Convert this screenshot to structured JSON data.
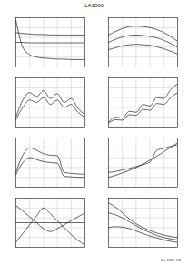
{
  "header": {
    "title": "LA1800"
  },
  "footer": {
    "text": "No.4681-4/8"
  },
  "chart_data": [
    {
      "type": "line",
      "x": [
        0,
        1,
        2,
        3,
        4,
        5,
        6,
        7,
        8,
        9,
        10
      ],
      "xlim": [
        0,
        10
      ],
      "ylim": [
        0,
        10
      ],
      "xticks": [
        0,
        2,
        4,
        6,
        8,
        10
      ],
      "yticks": [
        0,
        2,
        4,
        6,
        8,
        10
      ],
      "grid": true,
      "tick_labels": false,
      "series": [
        {
          "color": "#222222",
          "values": [
            9.5,
            4.0,
            2.5,
            2.0,
            1.8,
            1.7,
            1.6,
            1.6,
            1.5,
            1.5,
            1.5
          ]
        },
        {
          "color": "#222222",
          "values": [
            7.0,
            6.8,
            6.7,
            6.6,
            6.6,
            6.5,
            6.5,
            6.5,
            6.5,
            6.5,
            6.5
          ]
        },
        {
          "color": "#222222",
          "values": [
            5.0,
            5.0,
            4.9,
            4.9,
            4.9,
            4.9,
            4.9,
            4.9,
            4.9,
            4.9,
            4.9
          ]
        }
      ]
    },
    {
      "type": "line",
      "x": [
        0,
        1,
        2,
        3,
        4,
        5,
        6,
        7,
        8,
        9,
        10
      ],
      "xlim": [
        0,
        10
      ],
      "ylim": [
        0,
        10
      ],
      "xticks": [
        0,
        2,
        4,
        6,
        8,
        10
      ],
      "yticks": [
        0,
        2,
        4,
        6,
        8,
        10
      ],
      "grid": true,
      "tick_labels": false,
      "series": [
        {
          "color": "#222222",
          "values": [
            6.5,
            7.2,
            7.8,
            8.2,
            8.3,
            8.2,
            8.0,
            7.6,
            7.0,
            6.2,
            5.2
          ]
        },
        {
          "color": "#222222",
          "values": [
            5.0,
            5.6,
            6.1,
            6.4,
            6.5,
            6.4,
            6.2,
            5.9,
            5.4,
            4.8,
            4.0
          ]
        },
        {
          "color": "#222222",
          "values": [
            3.5,
            3.9,
            4.3,
            4.5,
            4.6,
            4.5,
            4.4,
            4.1,
            3.7,
            3.2,
            2.6
          ]
        }
      ]
    },
    {
      "type": "line",
      "x": [
        0,
        1,
        2,
        3,
        4,
        5,
        6,
        7,
        8,
        9,
        10
      ],
      "xlim": [
        0,
        10
      ],
      "ylim": [
        0,
        10
      ],
      "xticks": [
        0,
        2,
        4,
        6,
        8,
        10
      ],
      "yticks": [
        0,
        2,
        4,
        6,
        8,
        10
      ],
      "grid": true,
      "tick_labels": false,
      "series": [
        {
          "color": "#222222",
          "values": [
            2.0,
            5.5,
            7.0,
            6.2,
            7.4,
            5.8,
            6.8,
            5.0,
            5.8,
            3.8,
            2.5
          ]
        },
        {
          "color": "#222222",
          "values": [
            1.5,
            4.0,
            5.5,
            5.0,
            6.0,
            4.6,
            5.5,
            4.0,
            4.6,
            3.0,
            2.0
          ]
        }
      ]
    },
    {
      "type": "line",
      "x": [
        0,
        1,
        2,
        3,
        4,
        5,
        6,
        7,
        8,
        9,
        10
      ],
      "xlim": [
        0,
        10
      ],
      "ylim": [
        0,
        10
      ],
      "xticks": [
        0,
        2,
        4,
        6,
        8,
        10
      ],
      "yticks": [
        0,
        2,
        4,
        6,
        8,
        10
      ],
      "grid": true,
      "tick_labels": false,
      "series": [
        {
          "color": "#222222",
          "values": [
            1.0,
            2.0,
            1.8,
            3.2,
            3.0,
            4.6,
            4.3,
            6.0,
            5.8,
            7.6,
            8.8
          ]
        },
        {
          "color": "#222222",
          "values": [
            0.8,
            1.5,
            1.4,
            2.5,
            2.4,
            3.6,
            3.4,
            4.8,
            4.6,
            6.0,
            7.0
          ]
        }
      ]
    },
    {
      "type": "line",
      "x": [
        0,
        1,
        2,
        3,
        4,
        5,
        6,
        7,
        8,
        9,
        10
      ],
      "xlim": [
        0,
        10
      ],
      "ylim": [
        0,
        10
      ],
      "xticks": [
        0,
        2,
        4,
        6,
        8,
        10
      ],
      "yticks": [
        0,
        2,
        4,
        6,
        8,
        10
      ],
      "grid": true,
      "tick_labels": false,
      "series": [
        {
          "color": "#222222",
          "values": [
            3.0,
            6.5,
            8.0,
            7.5,
            6.8,
            6.5,
            6.4,
            3.0,
            2.8,
            2.7,
            2.6
          ]
        },
        {
          "color": "#222222",
          "values": [
            2.5,
            5.0,
            6.0,
            5.6,
            5.2,
            5.0,
            4.9,
            2.2,
            2.1,
            2.0,
            2.0
          ]
        }
      ]
    },
    {
      "type": "line",
      "x": [
        0,
        1,
        2,
        3,
        4,
        5,
        6,
        7,
        8,
        9,
        10
      ],
      "xlim": [
        0,
        10
      ],
      "ylim": [
        0,
        10
      ],
      "xticks": [
        0,
        2,
        4,
        6,
        8,
        10
      ],
      "yticks": [
        0,
        2,
        4,
        6,
        8,
        10
      ],
      "grid": true,
      "tick_labels": false,
      "series": [
        {
          "color": "#222222",
          "values": [
            2.0,
            2.4,
            2.9,
            3.4,
            4.0,
            4.7,
            5.5,
            6.3,
            7.2,
            8.1,
            9.0
          ]
        },
        {
          "color": "#222222",
          "values": [
            3.0,
            3.2,
            3.5,
            3.8,
            4.2,
            4.6,
            5.1,
            7.5,
            7.9,
            8.3,
            8.6
          ]
        }
      ]
    },
    {
      "type": "line",
      "x": [
        0,
        1,
        2,
        3,
        4,
        5,
        6,
        7,
        8,
        9,
        10
      ],
      "xlim": [
        0,
        10
      ],
      "ylim": [
        0,
        10
      ],
      "xticks": [
        0,
        2,
        4,
        6,
        8,
        10
      ],
      "yticks": [
        0,
        2,
        4,
        6,
        8,
        10
      ],
      "grid": true,
      "tick_labels": false,
      "series": [
        {
          "color": "#222222",
          "values": [
            1.0,
            2.8,
            4.6,
            6.4,
            8.0,
            6.8,
            5.4,
            4.0,
            2.6,
            1.4,
            0.5
          ]
        },
        {
          "color": "#222222",
          "values": [
            8.5,
            7.4,
            6.2,
            5.0,
            3.8,
            3.2,
            3.8,
            4.6,
            5.4,
            6.2,
            7.0
          ]
        },
        {
          "color": "#222222",
          "values": [
            5.0,
            5.0,
            5.0,
            5.0,
            5.0,
            5.0,
            5.0,
            5.0,
            5.0,
            5.0,
            5.0
          ]
        }
      ]
    },
    {
      "type": "line",
      "x": [
        0,
        1,
        2,
        3,
        4,
        5,
        6,
        7,
        8,
        9,
        10
      ],
      "xlim": [
        0,
        10
      ],
      "ylim": [
        0,
        10
      ],
      "xticks": [
        0,
        2,
        4,
        6,
        8,
        10
      ],
      "yticks": [
        0,
        2,
        4,
        6,
        8,
        10
      ],
      "grid": true,
      "tick_labels": false,
      "series": [
        {
          "color": "#222222",
          "values": [
            9.0,
            8.2,
            7.0,
            5.8,
            4.8,
            4.0,
            3.4,
            2.9,
            2.5,
            2.2,
            2.0
          ]
        },
        {
          "color": "#222222",
          "values": [
            7.0,
            6.6,
            6.0,
            5.2,
            4.4,
            3.6,
            3.0,
            2.4,
            2.0,
            1.7,
            1.5
          ]
        },
        {
          "color": "#222222",
          "values": [
            4.0,
            4.2,
            4.1,
            3.8,
            3.3,
            2.8,
            2.3,
            1.9,
            1.5,
            1.2,
            1.0
          ]
        }
      ]
    }
  ]
}
